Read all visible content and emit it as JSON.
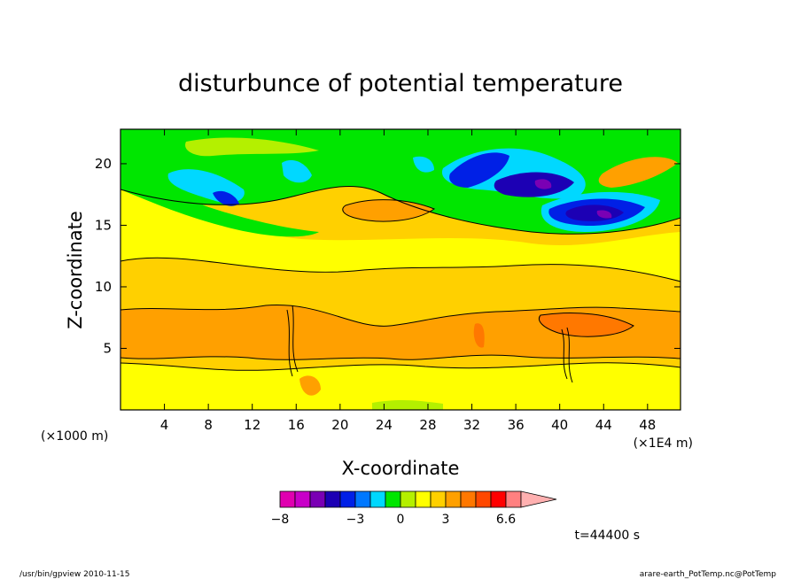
{
  "chart_data": {
    "type": "heatmap",
    "title": "disturbunce of potential temperature",
    "xlabel": "X-coordinate",
    "ylabel": "Z-coordinate",
    "x_units_note_left": "(×1000 m)",
    "x_units_note_right": "(×1E4 m)",
    "xlim": [
      0,
      51
    ],
    "ylim": [
      0,
      22.8
    ],
    "x_ticks": [
      4,
      8,
      12,
      16,
      20,
      24,
      28,
      32,
      36,
      40,
      44,
      48
    ],
    "y_ticks": [
      5,
      10,
      15,
      20
    ],
    "colorbar": {
      "colors": [
        "#e000b0",
        "#c800c8",
        "#7a00b4",
        "#1c00b4",
        "#0020e6",
        "#0078ff",
        "#00d8ff",
        "#00e600",
        "#b4f000",
        "#ffff00",
        "#ffd000",
        "#ffa000",
        "#ff7800",
        "#ff4800",
        "#ff0000",
        "#ff8080",
        "#ffb0b0"
      ],
      "tick_labels": [
        "−8",
        "−3",
        "0",
        "3",
        "6.6"
      ]
    },
    "annotation": "t=44400 s"
  },
  "footer": {
    "left": "/usr/bin/gpview   2010-11-15",
    "right": "arare-earth_PotTemp.nc@PotTemp"
  }
}
